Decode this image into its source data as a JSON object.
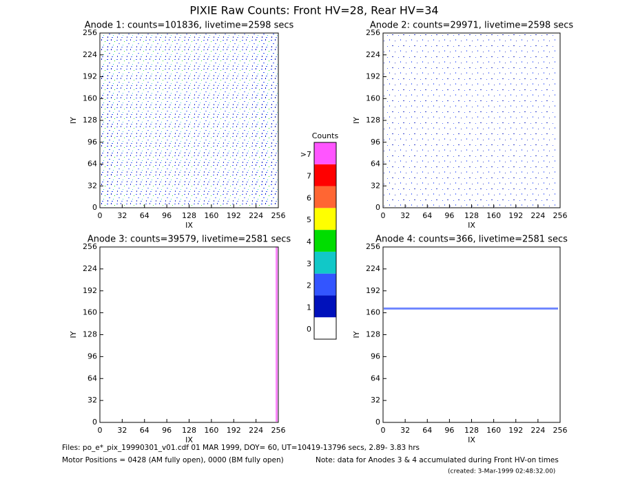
{
  "title": "PIXIE Raw Counts:  Front HV=28, Rear HV=34",
  "chart_data": [
    {
      "type": "heatmap",
      "title": "Anode 1: counts=101836, livetime=2598 secs",
      "xlabel": "IX",
      "ylabel": "IY",
      "xlim": [
        0,
        256
      ],
      "ylim": [
        0,
        256
      ],
      "xticks": [
        0,
        32,
        64,
        96,
        128,
        160,
        192,
        224,
        256
      ],
      "yticks": [
        0,
        32,
        64,
        96,
        128,
        160,
        192,
        224,
        256
      ]
    },
    {
      "type": "heatmap",
      "title": "Anode 2: counts=29971, livetime=2598 secs",
      "xlabel": "IX",
      "ylabel": "IY",
      "xlim": [
        0,
        256
      ],
      "ylim": [
        0,
        256
      ],
      "xticks": [
        0,
        32,
        64,
        96,
        128,
        160,
        192,
        224,
        256
      ],
      "yticks": [
        0,
        32,
        64,
        96,
        128,
        160,
        192,
        224,
        256
      ]
    },
    {
      "type": "heatmap",
      "title": "Anode 3: counts=39579, livetime=2581 secs",
      "xlabel": "IX",
      "ylabel": "IY",
      "xlim": [
        0,
        256
      ],
      "ylim": [
        0,
        256
      ],
      "xticks": [
        0,
        32,
        64,
        96,
        128,
        160,
        192,
        224,
        256
      ],
      "yticks": [
        0,
        32,
        64,
        96,
        128,
        160,
        192,
        224,
        256
      ]
    },
    {
      "type": "heatmap",
      "title": "Anode 4: counts=366, livetime=2581 secs",
      "xlabel": "IX",
      "ylabel": "IY",
      "xlim": [
        0,
        256
      ],
      "ylim": [
        0,
        256
      ],
      "xticks": [
        0,
        32,
        64,
        96,
        128,
        160,
        192,
        224,
        256
      ],
      "yticks": [
        0,
        32,
        64,
        96,
        128,
        160,
        192,
        224,
        256
      ]
    },
    {
      "type": "colorbar",
      "title": "Counts",
      "categories": [
        "0",
        "1",
        "2",
        "3",
        "4",
        "5",
        "6",
        "7",
        ">7"
      ],
      "colors": [
        "#ffffff",
        "#0011bb",
        "#3355ff",
        "#11c8c8",
        "#00dd00",
        "#ffff00",
        "#ff6633",
        "#ff0000",
        "#ff55ff"
      ]
    }
  ],
  "footer": {
    "files": "Files: po_e*_pix_19990301_v01.cdf   01 MAR 1999, DOY= 60, UT=10419-13796 secs,  2.89- 3.83 hrs",
    "motor": "Motor Positions = 0428 (AM fully open), 0000 (BM fully open)",
    "note": "Note: data for Anodes 3 & 4 accumulated during Front HV-on times",
    "created": "(created:  3-Mar-1999 02:48:32.00)"
  }
}
